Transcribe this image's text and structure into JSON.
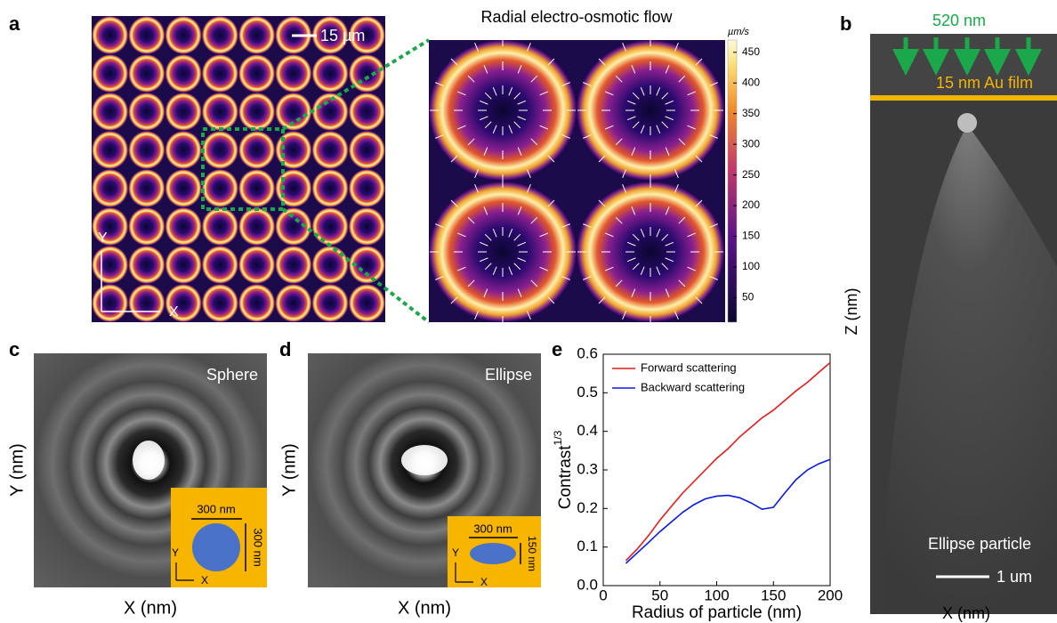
{
  "panel_a": {
    "letter": "a",
    "scale_bar": "15 µm",
    "axis_y": "Y",
    "axis_x": "X",
    "zoom_title": "Radial electro-osmotic flow",
    "colorbar": {
      "label": "µm/s",
      "clim": [
        10,
        470
      ],
      "ticks": [
        450,
        400,
        350,
        300,
        250,
        200,
        150,
        100,
        50
      ]
    }
  },
  "panel_b": {
    "letter": "b",
    "wavelength": "520 nm",
    "film": "15 nm Au film",
    "particle": "Ellipse particle",
    "scale_bar": "1 um",
    "y_label": "Z (nm)",
    "x_label": "X (nm)"
  },
  "panel_c": {
    "letter": "c",
    "label": "Sphere",
    "width": "300 nm",
    "height": "300 nm",
    "axis_y": "Y",
    "axis_x": "X",
    "y_label": "Y (nm)",
    "x_label": "X (nm)"
  },
  "panel_d": {
    "letter": "d",
    "label": "Ellipse",
    "width": "300 nm",
    "height": "150 nm",
    "axis_y": "Y",
    "axis_x": "X",
    "y_label": "Y (nm)",
    "x_label": "X (nm)"
  },
  "panel_e_letter": "e",
  "chart_data": {
    "type": "line",
    "x_label": "Radius of particle (nm)",
    "y_label": "Contrast",
    "y_label_superscript": "1/3",
    "x": [
      20,
      30,
      40,
      50,
      60,
      70,
      80,
      90,
      100,
      110,
      120,
      130,
      140,
      150,
      160,
      170,
      180,
      190,
      200
    ],
    "series": [
      {
        "name": "Forward scattering",
        "color": "#e41a1c",
        "values": [
          0.065,
          0.095,
          0.13,
          0.17,
          0.205,
          0.24,
          0.27,
          0.3,
          0.33,
          0.355,
          0.385,
          0.41,
          0.435,
          0.455,
          0.48,
          0.505,
          0.527,
          0.553,
          0.578
        ]
      },
      {
        "name": "Backward scattering",
        "color": "#0a1adc",
        "values": [
          0.058,
          0.085,
          0.112,
          0.14,
          0.165,
          0.19,
          0.21,
          0.225,
          0.232,
          0.234,
          0.228,
          0.215,
          0.198,
          0.203,
          0.24,
          0.275,
          0.3,
          0.316,
          0.327
        ]
      }
    ],
    "xlim": [
      0,
      200
    ],
    "xticks": [
      0,
      50,
      100,
      150,
      200
    ],
    "ylim": [
      0,
      0.6
    ],
    "yticks": [
      {
        "value": 0,
        "label": "0.0"
      },
      0.1,
      0.2,
      0.3,
      0.4,
      0.5,
      0.6
    ],
    "legend": "upper left"
  }
}
